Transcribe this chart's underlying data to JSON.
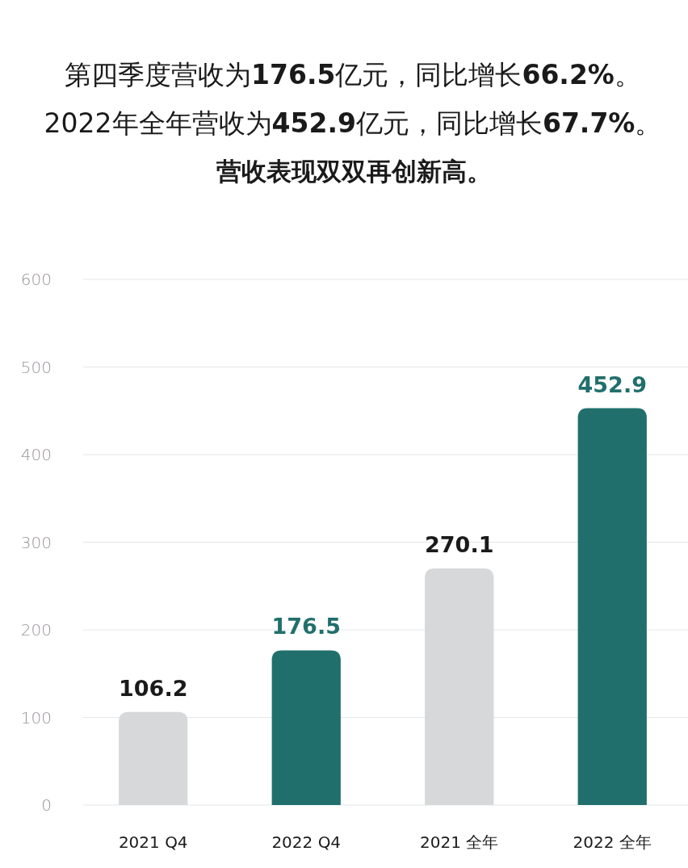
{
  "chart_data": {
    "type": "bar",
    "title": "第四季度营收为176.5亿元，同比增长66.2%。",
    "subtitle": "2022年全年营收为452.9亿元，同比增长67.7%。",
    "annotations": [
      "营收表现双双再创新高。"
    ],
    "categories": [
      "2021 Q4",
      "2022 Q4",
      "2021 全年",
      "2022 全年"
    ],
    "values": [
      106.2,
      176.5,
      270.1,
      452.9
    ],
    "colors": [
      "#d7d8da",
      "#216f6c",
      "#d7d8da",
      "#216f6c"
    ],
    "ylim": [
      0,
      600
    ],
    "yticks": [
      0,
      100,
      200,
      300,
      400,
      500,
      600
    ],
    "grid": "y",
    "data_labels": true
  }
}
